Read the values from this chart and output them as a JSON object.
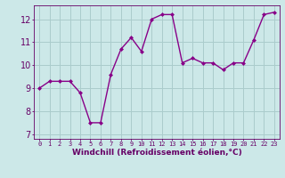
{
  "x": [
    0,
    1,
    2,
    3,
    4,
    5,
    6,
    7,
    8,
    9,
    10,
    11,
    12,
    13,
    14,
    15,
    16,
    17,
    18,
    19,
    20,
    21,
    22,
    23
  ],
  "y": [
    9.0,
    9.3,
    9.3,
    9.3,
    8.8,
    7.5,
    7.5,
    9.6,
    10.7,
    11.2,
    10.6,
    12.0,
    12.2,
    12.2,
    10.1,
    10.3,
    10.1,
    10.1,
    9.8,
    10.1,
    10.1,
    11.1,
    12.2,
    12.3
  ],
  "line_color": "#880088",
  "marker": "D",
  "marker_size": 2.0,
  "bg_color": "#cce8e8",
  "grid_color": "#aacccc",
  "xlabel": "Windchill (Refroidissement éolien,°C)",
  "ylim": [
    6.8,
    12.6
  ],
  "xlim": [
    -0.5,
    23.5
  ],
  "xticks": [
    0,
    1,
    2,
    3,
    4,
    5,
    6,
    7,
    8,
    9,
    10,
    11,
    12,
    13,
    14,
    15,
    16,
    17,
    18,
    19,
    20,
    21,
    22,
    23
  ],
  "yticks": [
    7,
    8,
    9,
    10,
    11,
    12
  ],
  "xlabel_fontsize": 6.5,
  "tick_fontsize_x": 5.0,
  "tick_fontsize_y": 7.0,
  "linewidth": 1.0,
  "text_color": "#660066"
}
